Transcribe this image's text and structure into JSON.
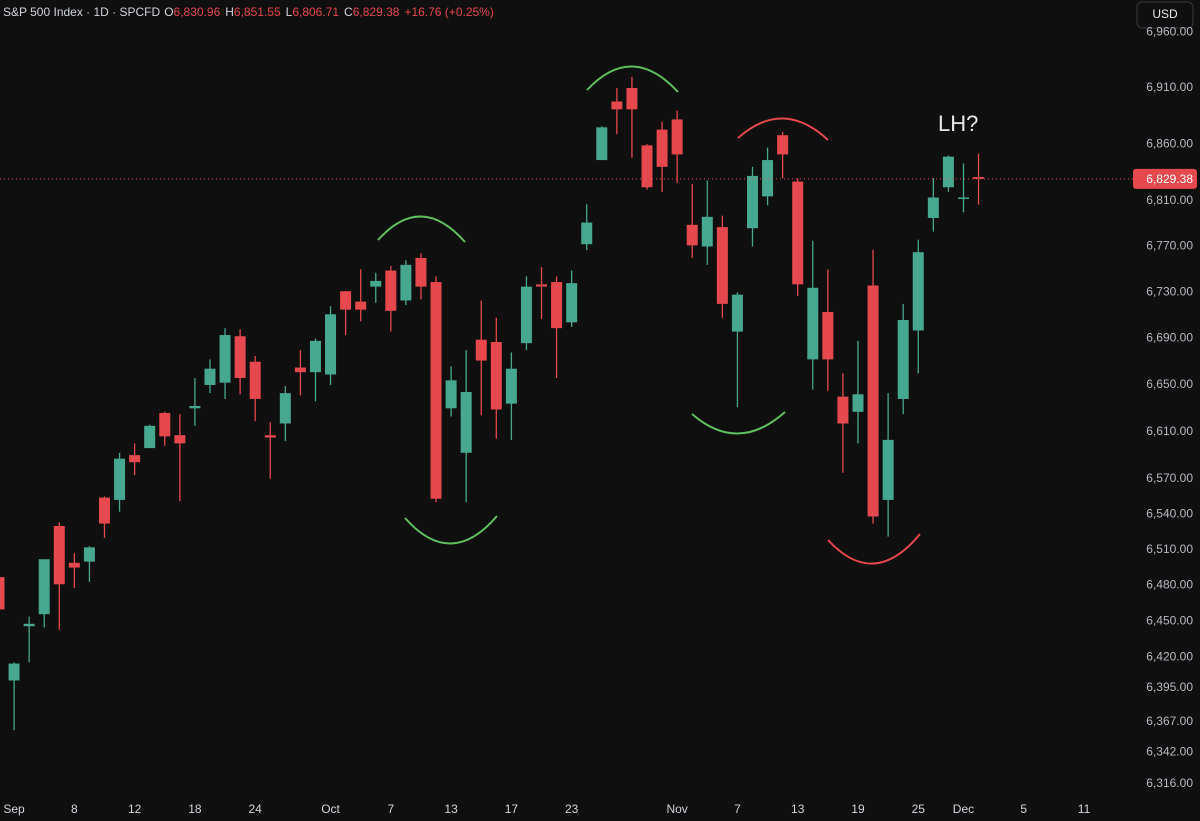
{
  "chart_data": {
    "type": "candlestick",
    "header": {
      "symbol": "S&P 500 Index · 1D · SPCFD",
      "ohlc": [
        {
          "key": "O",
          "value": "6,830.96"
        },
        {
          "key": "H",
          "value": "6,851.55"
        },
        {
          "key": "L",
          "value": "6,806.71"
        },
        {
          "key": "C",
          "value": "6,829.38"
        }
      ],
      "change": "+16.76 (+0.25%)"
    },
    "currency": "USD",
    "annotation": "LH?",
    "up_color": "#46a88f",
    "down_color": "#e5484d",
    "log_scale": true,
    "grid": false,
    "last_price": {
      "value": 6829.38,
      "label": "6,829.38"
    },
    "categories": [
      null,
      "Sep",
      null,
      null,
      null,
      "8",
      null,
      null,
      null,
      "12",
      null,
      null,
      null,
      "18",
      null,
      null,
      null,
      "24",
      null,
      null,
      null,
      null,
      "Oct",
      null,
      null,
      null,
      "7",
      null,
      null,
      null,
      "13",
      null,
      null,
      null,
      "17",
      null,
      null,
      null,
      "23",
      null,
      null,
      null,
      null,
      null,
      null,
      "Nov",
      null,
      null,
      null,
      "7",
      null,
      null,
      null,
      "13",
      null,
      null,
      null,
      "19",
      null,
      null,
      null,
      "25",
      null,
      null,
      "Dec",
      null,
      null,
      null,
      "5",
      null,
      null,
      null,
      "11"
    ],
    "open": [
      6487,
      6401,
      6446,
      6456,
      6530,
      6499,
      6500,
      6554,
      6552,
      6590,
      6596,
      6626,
      6607,
      6630,
      6650,
      6652,
      6692,
      6670,
      6607,
      6617,
      6665,
      6661,
      6659,
      6731,
      6722,
      6735,
      6749,
      6723,
      6760,
      6739,
      6630,
      6592,
      6689,
      6687,
      6634,
      6686,
      6737,
      6739,
      6704,
      6772,
      6846,
      6898,
      6910,
      6859,
      6873,
      6882,
      6789,
      6770,
      6787,
      6696,
      6786,
      6814,
      6868,
      6827,
      6672,
      6713,
      6640,
      6627,
      6736,
      6552,
      6638,
      6697,
      6795,
      6822,
      6812,
      6830.96,
      null,
      null,
      null,
      null,
      null,
      null,
      null
    ],
    "high": [
      6490,
      6416,
      6454,
      6502,
      6533,
      6507,
      6513,
      6555,
      6592,
      6600,
      6616,
      6627,
      6625,
      6656,
      6672,
      6699,
      6698,
      6675,
      6618,
      6649,
      6680,
      6690,
      6718,
      6731,
      6750,
      6747,
      6753,
      6758,
      6764,
      6744,
      6666,
      6680,
      6723,
      6708,
      6678,
      6744,
      6752,
      6744,
      6749,
      6807,
      6876,
      6910,
      6920,
      6860,
      6880,
      6890,
      6825,
      6828,
      6797,
      6730,
      6840,
      6857,
      6871,
      6830,
      6775,
      6750,
      6660,
      6688,
      6767,
      6643,
      6720,
      6776,
      6830,
      6850,
      6843,
      6851.55,
      null,
      null,
      null,
      null,
      null,
      null,
      null
    ],
    "low": [
      6450,
      6360,
      6416,
      6445,
      6443,
      6478,
      6483,
      6520,
      6542,
      6573,
      6596,
      6598,
      6551,
      6615,
      6643,
      6638,
      6642,
      6619,
      6570,
      6602,
      6641,
      6636,
      6650,
      6693,
      6705,
      6721,
      6696,
      6719,
      6724,
      6550,
      6623,
      6550,
      6624,
      6604,
      6603,
      6680,
      6707,
      6656,
      6700,
      6767,
      6846,
      6869,
      6848,
      6820,
      6818,
      6826,
      6760,
      6754,
      6708,
      6631,
      6770,
      6806,
      6830,
      6727,
      6646,
      6645,
      6575,
      6600,
      6532,
      6521,
      6625,
      6660,
      6783,
      6818,
      6800,
      6806.71,
      null,
      null,
      null,
      null,
      null,
      null,
      null
    ],
    "close": [
      6460,
      6415,
      6448,
      6502,
      6481,
      6495,
      6512,
      6532,
      6587,
      6584,
      6615,
      6606,
      6600,
      6632,
      6664,
      6693,
      6656,
      6638,
      6605,
      6643,
      6661,
      6688,
      6711,
      6715,
      6715,
      6740,
      6714,
      6754,
      6735,
      6553,
      6654,
      6644,
      6671,
      6629,
      6664,
      6735,
      6735,
      6699,
      6738,
      6791,
      6875,
      6891,
      6891,
      6822,
      6840,
      6851,
      6771,
      6796,
      6720,
      6728,
      6832,
      6846,
      6851,
      6737,
      6734,
      6672,
      6617,
      6642,
      6538,
      6603,
      6706,
      6765,
      6813,
      6849,
      6813,
      6829.38,
      null,
      null,
      null,
      null,
      null,
      null,
      null
    ],
    "ylim": [
      6307,
      6989
    ],
    "yticks": [
      {
        "value": 6960,
        "label": "6,960.00"
      },
      {
        "value": 6910,
        "label": "6,910.00"
      },
      {
        "value": 6860,
        "label": "6,860.00"
      },
      {
        "value": 6810,
        "label": "6,810.00"
      },
      {
        "value": 6770,
        "label": "6,770.00"
      },
      {
        "value": 6730,
        "label": "6,730.00"
      },
      {
        "value": 6690,
        "label": "6,690.00"
      },
      {
        "value": 6650,
        "label": "6,650.00"
      },
      {
        "value": 6610,
        "label": "6,610.00"
      },
      {
        "value": 6570,
        "label": "6,570.00"
      },
      {
        "value": 6540,
        "label": "6,540.00"
      },
      {
        "value": 6510,
        "label": "6,510.00"
      },
      {
        "value": 6480,
        "label": "6,480.00"
      },
      {
        "value": 6450,
        "label": "6,450.00"
      },
      {
        "value": 6420,
        "label": "6,420.00"
      },
      {
        "value": 6395,
        "label": "6,395.00"
      },
      {
        "value": 6367,
        "label": "6,367.00"
      },
      {
        "value": 6342,
        "label": "6,342.00"
      },
      {
        "value": 6316,
        "label": "6,316.00"
      }
    ]
  }
}
